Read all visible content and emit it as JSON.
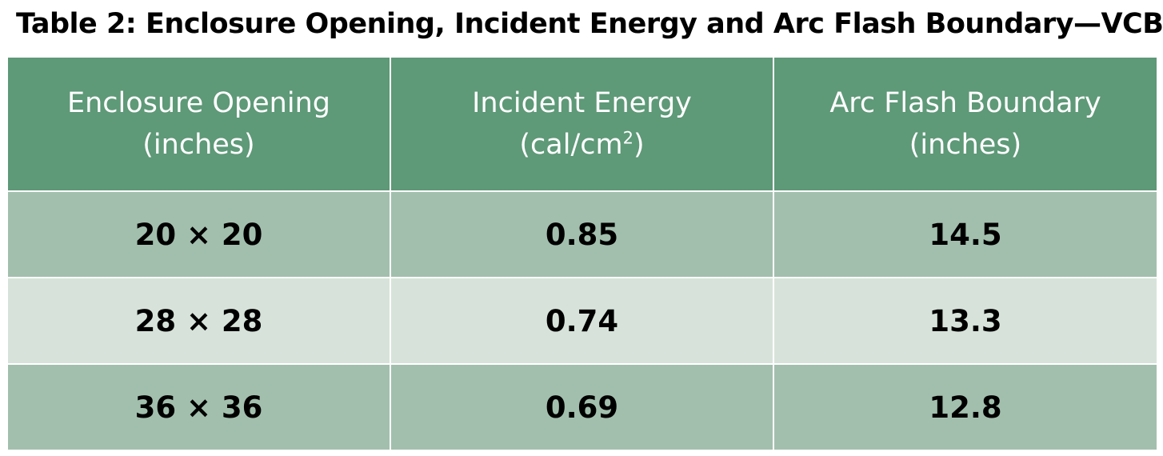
{
  "title": "Table 2: Enclosure Opening, Incident Energy and Arc Flash Boundary—VCB",
  "colors": {
    "header_bg": "#5e9978",
    "row_dark": "#a2bfad",
    "row_light": "#d7e3da",
    "header_text": "#ffffff",
    "body_text": "#000000"
  },
  "columns": [
    {
      "line1": "Enclosure Opening",
      "line2": "(inches)"
    },
    {
      "line1": "Incident Energy",
      "line2_base": "(cal/cm",
      "line2_sup": "2",
      "line2_tail": ")"
    },
    {
      "line1": "Arc Flash Boundary",
      "line2": "(inches)"
    }
  ],
  "rows": [
    {
      "opening": "20 × 20",
      "energy": "0.85",
      "boundary": "14.5"
    },
    {
      "opening": "28 × 28",
      "energy": "0.74",
      "boundary": "13.3"
    },
    {
      "opening": "36 × 36",
      "energy": "0.69",
      "boundary": "12.8"
    }
  ]
}
